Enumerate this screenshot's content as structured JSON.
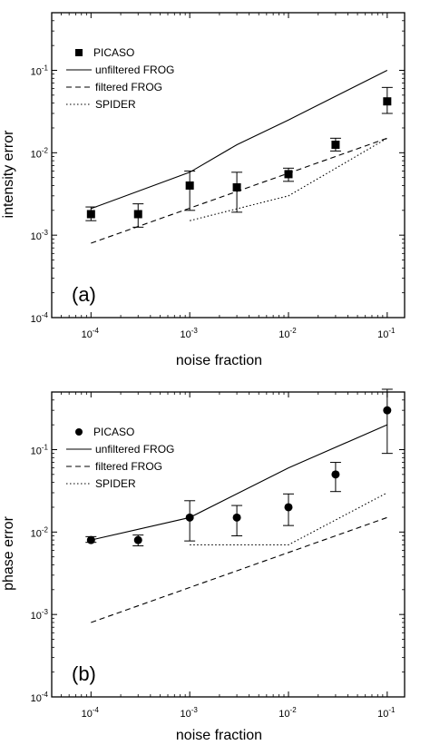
{
  "chart_data": [
    {
      "type": "scatter",
      "panel_label": "(a)",
      "xlabel": "noise fraction",
      "ylabel": "intensity error",
      "xscale": "log",
      "yscale": "log",
      "xlim": [
        4e-05,
        0.15
      ],
      "ylim": [
        0.0001,
        0.5
      ],
      "xticks": [
        {
          "base": "10",
          "exp": "-4",
          "value": 0.0001
        },
        {
          "base": "10",
          "exp": "-3",
          "value": 0.001
        },
        {
          "base": "10",
          "exp": "-2",
          "value": 0.01
        },
        {
          "base": "10",
          "exp": "-1",
          "value": 0.1
        }
      ],
      "yticks": [
        {
          "base": "10",
          "exp": "-4",
          "value": 0.0001
        },
        {
          "base": "10",
          "exp": "-3",
          "value": 0.001
        },
        {
          "base": "10",
          "exp": "-2",
          "value": 0.01
        },
        {
          "base": "10",
          "exp": "-1",
          "value": 0.1
        }
      ],
      "legend_position": "top-left",
      "series": [
        {
          "name": "PICASO",
          "kind": "points",
          "marker": "square",
          "x": [
            0.0001,
            0.0003,
            0.001,
            0.003,
            0.01,
            0.03,
            0.1
          ],
          "y": [
            0.0018,
            0.0018,
            0.004,
            0.0038,
            0.0055,
            0.0125,
            0.042
          ],
          "err_low": [
            0.0015,
            0.00125,
            0.002,
            0.0019,
            0.0045,
            0.0105,
            0.03
          ],
          "err_high": [
            0.0022,
            0.0024,
            0.006,
            0.0058,
            0.0065,
            0.015,
            0.062
          ]
        },
        {
          "name": "unfiltered FROG",
          "kind": "line",
          "dash": "solid",
          "x": [
            0.0001,
            0.001,
            0.003,
            0.01,
            0.1
          ],
          "y": [
            0.0021,
            0.0058,
            0.0125,
            0.025,
            0.1
          ]
        },
        {
          "name": "filtered FROG",
          "kind": "line",
          "dash": "dashed",
          "x": [
            0.0001,
            0.1
          ],
          "y": [
            0.0008,
            0.015
          ]
        },
        {
          "name": "SPIDER",
          "kind": "line",
          "dash": "dotted",
          "x": [
            0.001,
            0.01,
            0.1
          ],
          "y": [
            0.0015,
            0.003,
            0.015
          ]
        }
      ]
    },
    {
      "type": "scatter",
      "panel_label": "(b)",
      "xlabel": "noise fraction",
      "ylabel": "phase error",
      "xscale": "log",
      "yscale": "log",
      "xlim": [
        4e-05,
        0.15
      ],
      "ylim": [
        0.0001,
        0.5
      ],
      "xticks": [
        {
          "base": "10",
          "exp": "-4",
          "value": 0.0001
        },
        {
          "base": "10",
          "exp": "-3",
          "value": 0.001
        },
        {
          "base": "10",
          "exp": "-2",
          "value": 0.01
        },
        {
          "base": "10",
          "exp": "-1",
          "value": 0.1
        }
      ],
      "yticks": [
        {
          "base": "10",
          "exp": "-4",
          "value": 0.0001
        },
        {
          "base": "10",
          "exp": "-3",
          "value": 0.001
        },
        {
          "base": "10",
          "exp": "-2",
          "value": 0.01
        },
        {
          "base": "10",
          "exp": "-1",
          "value": 0.1
        }
      ],
      "legend_position": "top-left",
      "series": [
        {
          "name": "PICASO",
          "kind": "points",
          "marker": "circle",
          "x": [
            0.0001,
            0.0003,
            0.001,
            0.003,
            0.01,
            0.03,
            0.1
          ],
          "y": [
            0.008,
            0.008,
            0.015,
            0.015,
            0.02,
            0.05,
            0.3
          ],
          "err_low": [
            0.0075,
            0.0068,
            0.0078,
            0.009,
            0.012,
            0.031,
            0.09
          ],
          "err_high": [
            0.0088,
            0.0092,
            0.024,
            0.021,
            0.029,
            0.07,
            0.54
          ]
        },
        {
          "name": "unfiltered FROG",
          "kind": "line",
          "dash": "solid",
          "x": [
            0.0001,
            0.001,
            0.01,
            0.1
          ],
          "y": [
            0.008,
            0.015,
            0.06,
            0.2
          ]
        },
        {
          "name": "filtered FROG",
          "kind": "line",
          "dash": "dashed",
          "x": [
            0.0001,
            0.1
          ],
          "y": [
            0.0008,
            0.015
          ]
        },
        {
          "name": "SPIDER",
          "kind": "line",
          "dash": "dotted",
          "x": [
            0.001,
            0.01,
            0.1
          ],
          "y": [
            0.007,
            0.007,
            0.03
          ]
        }
      ]
    }
  ]
}
